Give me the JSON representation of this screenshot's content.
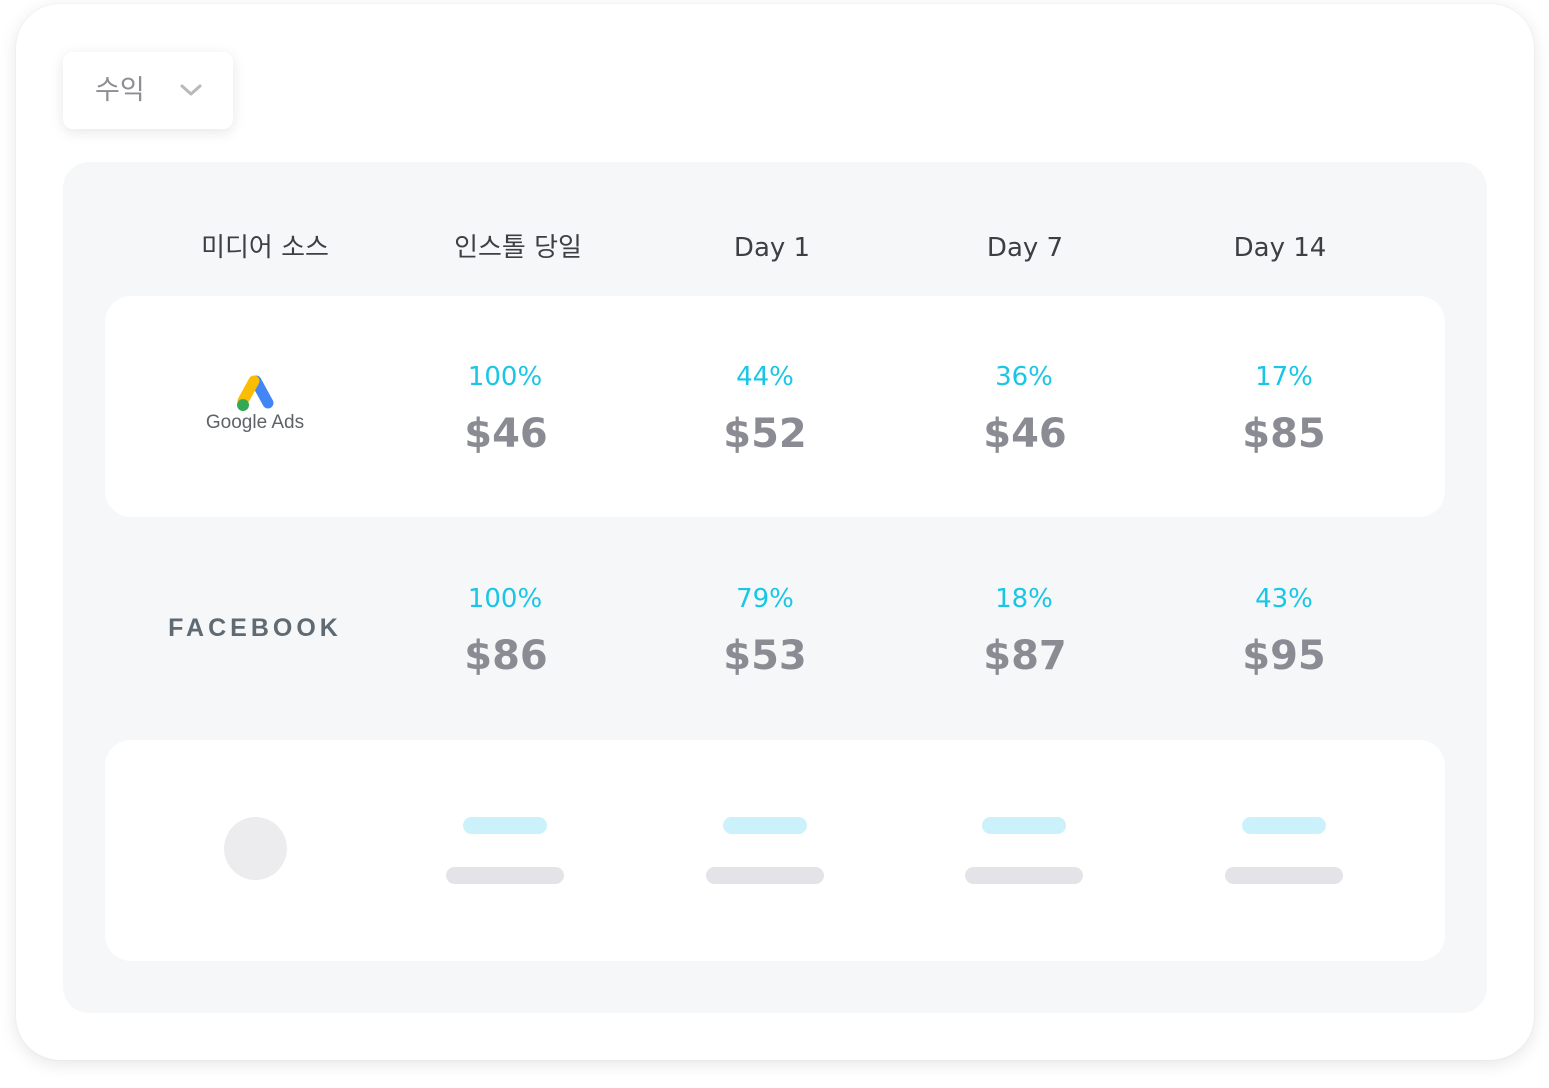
{
  "dropdown": {
    "label": "수익",
    "icon": "chevron-down-icon"
  },
  "table": {
    "headers": [
      "미디어 소스",
      "인스톨 당일",
      "Day 1",
      "Day 7",
      "Day 14"
    ],
    "rows": [
      {
        "source": "Google Ads",
        "source_icon": "google-ads-logo",
        "cells": [
          {
            "pct": "100%",
            "amount": "$46"
          },
          {
            "pct": "44%",
            "amount": "$52"
          },
          {
            "pct": "36%",
            "amount": "$46"
          },
          {
            "pct": "17%",
            "amount": "$85"
          }
        ]
      },
      {
        "source": "FACEBOOK",
        "cells": [
          {
            "pct": "100%",
            "amount": "$86"
          },
          {
            "pct": "79%",
            "amount": "$53"
          },
          {
            "pct": "18%",
            "amount": "$87"
          },
          {
            "pct": "43%",
            "amount": "$95"
          }
        ]
      }
    ]
  },
  "colors": {
    "accent": "#19c6e6",
    "amount": "#8b8b93",
    "panel": "#f6f7f8"
  }
}
